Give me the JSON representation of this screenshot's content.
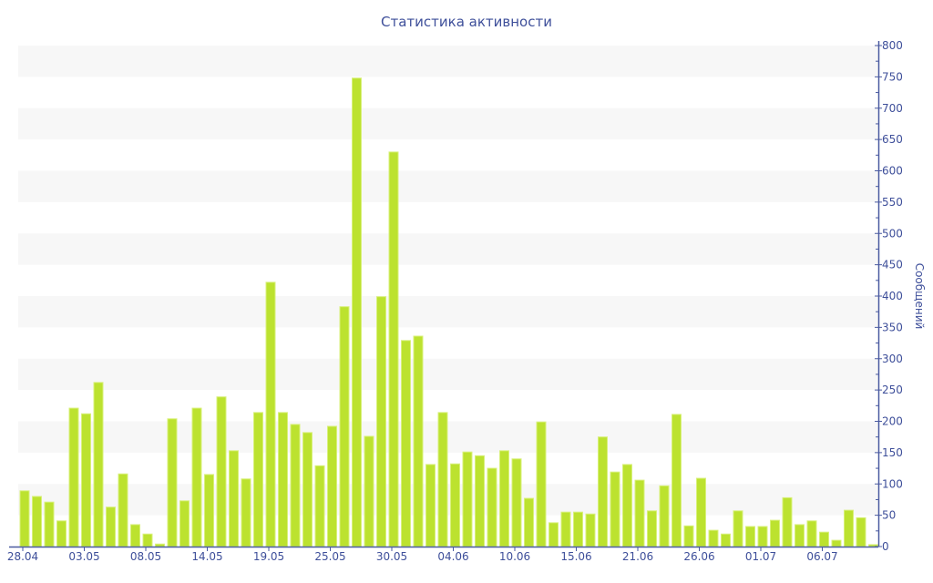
{
  "chart_data": {
    "type": "bar",
    "title": "Статистика активности",
    "xlabel": "",
    "ylabel": "Сообщений",
    "ylim": [
      0,
      800
    ],
    "ytick_step": 50,
    "yaxis_position": "right",
    "grid": "alternating horizontal bands",
    "tick_every": 5,
    "tick_labels": [
      "28.04",
      "03.05",
      "08.05",
      "14.05",
      "19.05",
      "25.05",
      "30.05",
      "04.06",
      "10.06",
      "15.06",
      "21.06",
      "26.06",
      "01.07",
      "06.07"
    ],
    "values": [
      89,
      80,
      71,
      41,
      221,
      212,
      262,
      63,
      116,
      35,
      20,
      4,
      204,
      73,
      221,
      115,
      239,
      153,
      108,
      214,
      422,
      214,
      195,
      182,
      129,
      192,
      383,
      748,
      176,
      399,
      630,
      329,
      336,
      131,
      214,
      132,
      151,
      145,
      125,
      153,
      140,
      77,
      199,
      38,
      55,
      55,
      52,
      175,
      119,
      131,
      106,
      57,
      97,
      211,
      33,
      109,
      26,
      20,
      57,
      32,
      32,
      42,
      78,
      35,
      41,
      23,
      10,
      58,
      46,
      3
    ],
    "colors": {
      "bar": "#bce22f",
      "bar_edge": "#d8f07a",
      "axis": "#4a5aa0",
      "text": "#3e4f9a",
      "band": "#f7f7f7"
    }
  }
}
